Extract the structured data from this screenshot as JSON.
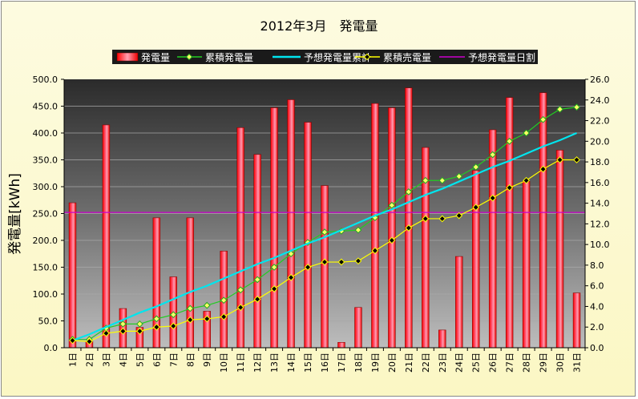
{
  "chart_data": {
    "type": "bar",
    "title": "2012年3月　発電量",
    "ylabel": "発電量[kWh]",
    "ylim": [
      0,
      500
    ],
    "y2lim": [
      0,
      26
    ],
    "y_ticks": [
      "0.0",
      "50.0",
      "100.0",
      "150.0",
      "200.0",
      "250.0",
      "300.0",
      "350.0",
      "400.0",
      "450.0",
      "500.0"
    ],
    "y2_ticks": [
      "0.0",
      "2.0",
      "4.0",
      "6.0",
      "8.0",
      "10.0",
      "12.0",
      "14.0",
      "16.0",
      "18.0",
      "20.0",
      "22.0",
      "24.0",
      "26.0"
    ],
    "categories": [
      "1日",
      "2日",
      "3日",
      "4日",
      "5日",
      "6日",
      "7日",
      "8日",
      "9日",
      "10日",
      "11日",
      "12日",
      "13日",
      "14日",
      "15日",
      "16日",
      "17日",
      "18日",
      "19日",
      "20日",
      "21日",
      "22日",
      "23日",
      "24日",
      "25日",
      "26日",
      "27日",
      "28日",
      "29日",
      "30日",
      "31日"
    ],
    "legend": {
      "daily": "発電量",
      "cumulative": "累積発電量",
      "expected_cumulative": "予想発電量累計",
      "sold_cumulative": "累積売電量",
      "expected_daily": "予想発電量日割"
    },
    "series": [
      {
        "name": "発電量",
        "axis": "left",
        "kind": "bar",
        "color": "#ff0000",
        "values": [
          270,
          12,
          415,
          73,
          38,
          242,
          132,
          242,
          68,
          180,
          410,
          360,
          447,
          462,
          420,
          302,
          10,
          75,
          455,
          447,
          484,
          373,
          33,
          170,
          330,
          406,
          466,
          310,
          475,
          368,
          102
        ]
      },
      {
        "name": "累積発電量",
        "axis": "right",
        "kind": "line",
        "color": "#22cc22",
        "values": [
          0.8,
          0.8,
          1.9,
          2.3,
          2.3,
          2.8,
          3.2,
          3.8,
          4.1,
          4.6,
          5.6,
          6.6,
          7.8,
          9.1,
          10.2,
          11.2,
          11.3,
          11.4,
          12.6,
          13.8,
          15.1,
          16.2,
          16.2,
          16.6,
          17.5,
          18.7,
          20.0,
          20.8,
          22.1,
          23.1,
          23.3
        ]
      },
      {
        "name": "予想発電量累計",
        "axis": "right",
        "kind": "line",
        "color": "#00e5ee",
        "values": [
          0.7,
          1.3,
          2.0,
          2.7,
          3.4,
          4.0,
          4.7,
          5.4,
          6.0,
          6.7,
          7.4,
          8.1,
          8.7,
          9.4,
          10.1,
          10.7,
          11.4,
          12.1,
          12.8,
          13.4,
          14.1,
          14.8,
          15.4,
          16.1,
          16.8,
          17.5,
          18.1,
          18.8,
          19.5,
          20.1,
          20.8
        ]
      },
      {
        "name": "累積売電量",
        "axis": "right",
        "kind": "line",
        "color": "#ffff00",
        "values": [
          0.7,
          0.6,
          1.4,
          1.6,
          1.6,
          2.0,
          2.1,
          2.7,
          2.8,
          3.0,
          3.9,
          4.7,
          5.7,
          6.8,
          7.8,
          8.3,
          8.3,
          8.4,
          9.4,
          10.4,
          11.6,
          12.5,
          12.5,
          12.8,
          13.6,
          14.5,
          15.5,
          16.2,
          17.3,
          18.2,
          18.2
        ]
      },
      {
        "name": "予想発電量日割",
        "axis": "left",
        "kind": "hline",
        "color": "#cc00cc",
        "values": [
          252,
          252,
          252,
          252,
          252,
          252,
          252,
          252,
          252,
          252,
          252,
          252,
          252,
          252,
          252,
          252,
          252,
          252,
          252,
          252,
          252,
          252,
          252,
          252,
          252,
          252,
          252,
          252,
          252,
          252,
          252
        ]
      }
    ]
  }
}
